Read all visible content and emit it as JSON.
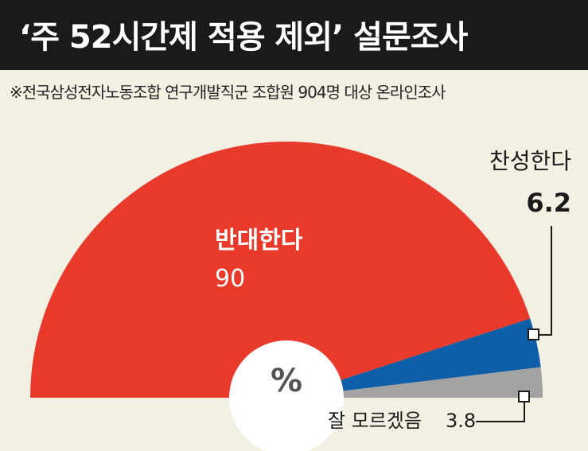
{
  "title": "‘주 52시간제 적용 제외’ 설문조사",
  "subtitle": "※전국삼성전자노동조합 연구개발직군 조합원 904명 대상 온라인조사",
  "unit": "%",
  "colors": {
    "background": "#f2efe3",
    "title_bar": "#1a1a1a",
    "oppose": "#e8392b",
    "agree": "#0e5fa8",
    "unsure": "#a3a3a3"
  },
  "chart_data": {
    "type": "pie",
    "style": "semicircle",
    "unit": "%",
    "slices": [
      {
        "label": "반대한다",
        "value": 90,
        "value_label": "90"
      },
      {
        "label": "찬성한다",
        "value": 6.2,
        "value_label": "6.2"
      },
      {
        "label": "잘 모르겠음",
        "value": 3.8,
        "value_label": "3.8"
      }
    ]
  }
}
